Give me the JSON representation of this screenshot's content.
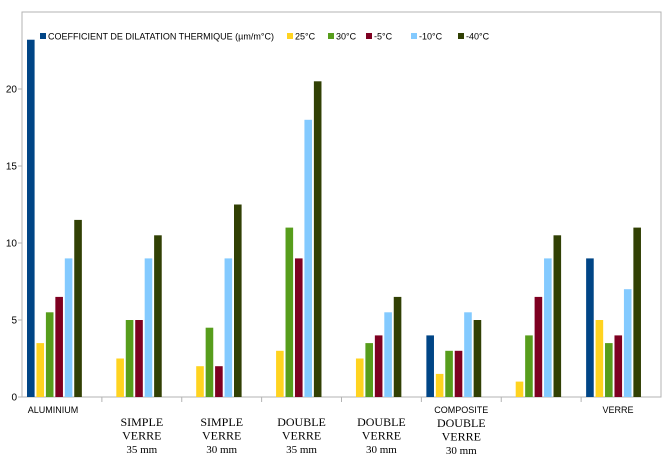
{
  "chart_data": {
    "type": "bar",
    "title": "",
    "xlabel": "",
    "ylabel": "",
    "ylim": [
      0,
      25
    ],
    "yticks": [
      0,
      5,
      10,
      15,
      20
    ],
    "grid": false,
    "legend_position": "top",
    "categories": [
      "ALUMINIUM",
      "SIMPLE VERRE 35 mm",
      "SIMPLE VERRE 30 mm",
      "DOUBLE VERRE 35 mm",
      "DOUBLE VERRE 30 mm",
      "COMPOSITE DOUBLE VERRE 30 mm",
      "",
      "VERRE"
    ],
    "category_labels": [
      {
        "top": "ALUMINIUM",
        "lines": []
      },
      {
        "top": "",
        "lines": [
          "SIMPLE",
          "VERRE",
          "35 mm"
        ]
      },
      {
        "top": "",
        "lines": [
          "SIMPLE",
          "VERRE",
          "30 mm"
        ]
      },
      {
        "top": "",
        "lines": [
          "DOUBLE",
          "VERRE",
          "35 mm"
        ]
      },
      {
        "top": "",
        "lines": [
          "DOUBLE",
          "VERRE",
          "30 mm"
        ]
      },
      {
        "top": "COMPOSITE",
        "lines": [
          "DOUBLE",
          "VERRE",
          "30 mm"
        ]
      },
      {
        "top": "",
        "lines": []
      },
      {
        "top": "VERRE",
        "lines": []
      }
    ],
    "series": [
      {
        "name": "COEFFICIENT DE DILATATION THERMIQUE (µm/m°C)",
        "color": "#004586",
        "values": [
          23.2,
          null,
          null,
          null,
          null,
          4,
          null,
          9
        ]
      },
      {
        "name": "25°C",
        "color": "#ffd320",
        "values": [
          3.5,
          2.5,
          2,
          3,
          2.5,
          1.5,
          1,
          5
        ]
      },
      {
        "name": "30°C",
        "color": "#579d1c",
        "values": [
          5.5,
          5,
          4.5,
          11,
          3.5,
          3,
          4,
          3.5
        ]
      },
      {
        "name": "-5°C",
        "color": "#7e0021",
        "values": [
          6.5,
          5,
          2,
          9,
          4,
          3,
          6.5,
          4
        ]
      },
      {
        "name": "-10°C",
        "color": "#83caff",
        "values": [
          9,
          9,
          9,
          18,
          5.5,
          5.5,
          9,
          7
        ]
      },
      {
        "name": "-40°C",
        "color": "#314004",
        "values": [
          11.5,
          10.5,
          12.5,
          20.5,
          6.5,
          5,
          10.5,
          11
        ]
      }
    ]
  }
}
